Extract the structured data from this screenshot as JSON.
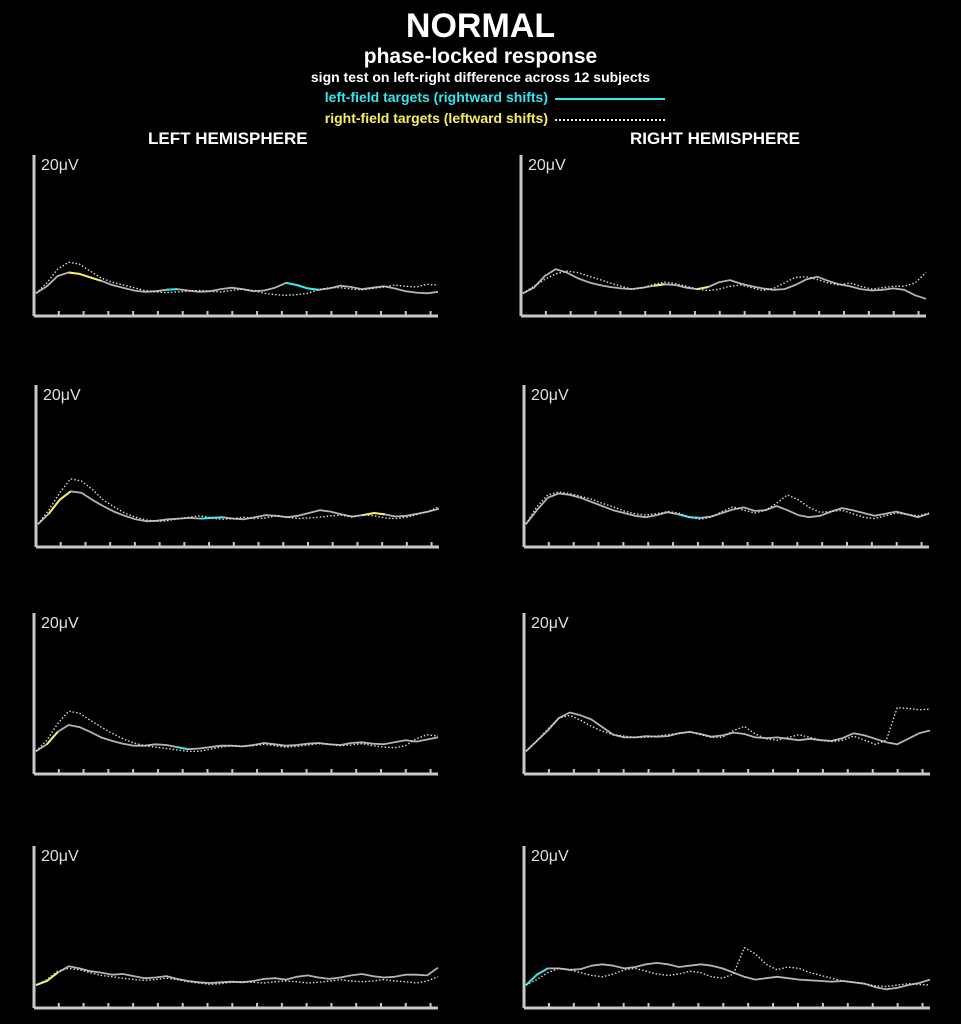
{
  "header": {
    "title": "NORMAL",
    "subtitle": "phase-locked response",
    "note": "sign test on left-right difference across 12 subjects"
  },
  "legend": {
    "left_field": "left-field targets (rightward shifts)",
    "right_field": "right-field targets (leftward shifts)"
  },
  "columns": {
    "left": "LEFT HEMISPHERE",
    "right": "RIGHT HEMISPHERE"
  },
  "colors": {
    "background": "#000000",
    "solid_trace": "#b4b4b4",
    "dotted_trace": "#d8d8d8",
    "cyan_highlight": "#33e6f0",
    "yellow_highlight": "#f5f060",
    "axis": "#c8c8c8"
  },
  "chart_data": [
    {
      "type": "line",
      "panel": "left-1",
      "scale_label": "20μV",
      "ylim": [
        -3,
        20
      ],
      "x_ticks": 16,
      "series": [
        {
          "style": "solid",
          "values": [
            0,
            1,
            2.5,
            3,
            2.8,
            2.3,
            1.8,
            1.2,
            0.8,
            0.4,
            0.2,
            0.3,
            0.5,
            0.6,
            0.4,
            0.2,
            0.3,
            0.6,
            0.8,
            0.6,
            0.3,
            0.4,
            0.8,
            1.5,
            1.2,
            0.7,
            0.5,
            0.7,
            1.1,
            0.9,
            0.6,
            0.8,
            1.0,
            0.7,
            0.3,
            0.1,
            0.0,
            0.2
          ],
          "highlight": [
            {
              "from": 3,
              "to": 6,
              "color": "yellow"
            },
            {
              "from": 12,
              "to": 13,
              "color": "cyan"
            },
            {
              "from": 23,
              "to": 26,
              "color": "cyan"
            }
          ]
        },
        {
          "style": "dotted",
          "values": [
            0,
            1.5,
            3.5,
            4.5,
            4.2,
            3.2,
            2.2,
            1.6,
            1.2,
            0.8,
            0.4,
            0.2,
            0.1,
            0.2,
            0.3,
            0.4,
            0.3,
            0.2,
            0.4,
            0.6,
            0.4,
            0.0,
            -0.2,
            -0.3,
            -0.2,
            0.0,
            0.5,
            0.8,
            0.8,
            0.6,
            0.5,
            0.7,
            0.9,
            1.2,
            1.0,
            0.9,
            1.3,
            1.2
          ]
        }
      ]
    },
    {
      "type": "line",
      "panel": "right-1",
      "scale_label": "20μV",
      "ylim": [
        -3,
        20
      ],
      "x_ticks": 16,
      "series": [
        {
          "style": "solid",
          "values": [
            0,
            0.8,
            2.5,
            3.5,
            3.0,
            2.2,
            1.6,
            1.2,
            0.9,
            0.7,
            0.6,
            0.8,
            1.1,
            1.3,
            1.2,
            0.8,
            0.6,
            0.9,
            1.6,
            1.9,
            1.4,
            1.0,
            0.7,
            0.5,
            0.6,
            1.2,
            2.0,
            2.4,
            1.8,
            1.3,
            1.0,
            0.6,
            0.4,
            0.5,
            0.7,
            0.5,
            -0.3,
            -0.8
          ],
          "highlight": [
            {
              "from": 12,
              "to": 13,
              "color": "yellow"
            },
            {
              "from": 16,
              "to": 17,
              "color": "yellow"
            }
          ]
        },
        {
          "style": "dotted",
          "values": [
            0,
            1.0,
            2.0,
            2.8,
            3.2,
            3.0,
            2.5,
            2.0,
            1.5,
            1.0,
            0.6,
            0.8,
            1.3,
            1.6,
            1.4,
            1.0,
            0.6,
            0.4,
            0.6,
            1.0,
            1.2,
            0.8,
            0.4,
            0.7,
            1.5,
            2.3,
            2.4,
            2.0,
            1.5,
            1.2,
            1.5,
            1.0,
            0.6,
            0.8,
            1.0,
            1.0,
            1.5,
            3.0
          ]
        }
      ]
    },
    {
      "type": "line",
      "panel": "left-2",
      "scale_label": "20μV",
      "ylim": [
        -3,
        20
      ],
      "x_ticks": 16,
      "series": [
        {
          "style": "solid",
          "values": [
            0,
            1.5,
            3.5,
            4.7,
            4.5,
            3.5,
            2.6,
            1.8,
            1.2,
            0.7,
            0.4,
            0.5,
            0.7,
            0.8,
            0.9,
            0.8,
            0.9,
            1.0,
            0.8,
            0.7,
            1.0,
            1.3,
            1.2,
            1.0,
            1.2,
            1.6,
            2.0,
            1.8,
            1.4,
            1.1,
            1.3,
            1.6,
            1.4,
            1.1,
            1.2,
            1.5,
            1.8,
            2.2
          ],
          "highlight": [
            {
              "from": 1,
              "to": 3,
              "color": "yellow"
            },
            {
              "from": 15,
              "to": 17,
              "color": "cyan"
            },
            {
              "from": 30,
              "to": 32,
              "color": "yellow"
            }
          ]
        },
        {
          "style": "dotted",
          "values": [
            0,
            2.0,
            4.5,
            6.5,
            6.2,
            5.0,
            3.5,
            2.5,
            1.6,
            1.0,
            0.6,
            0.4,
            0.5,
            0.8,
            1.0,
            1.2,
            0.9,
            0.7,
            0.8,
            1.0,
            0.8,
            0.9,
            1.2,
            1.0,
            0.8,
            0.9,
            1.0,
            1.2,
            1.3,
            1.0,
            1.4,
            1.2,
            0.9,
            0.8,
            1.0,
            1.4,
            1.8,
            2.5
          ]
        }
      ]
    },
    {
      "type": "line",
      "panel": "right-2",
      "scale_label": "20μV",
      "ylim": [
        -3,
        20
      ],
      "x_ticks": 16,
      "series": [
        {
          "style": "solid",
          "values": [
            0,
            2.0,
            3.8,
            4.4,
            4.2,
            3.8,
            3.2,
            2.6,
            2.0,
            1.6,
            1.2,
            1.0,
            1.3,
            1.7,
            1.4,
            1.0,
            0.9,
            1.1,
            1.6,
            2.1,
            2.4,
            1.9,
            2.0,
            2.6,
            2.0,
            1.3,
            1.0,
            1.2,
            1.8,
            2.3,
            2.0,
            1.6,
            1.2,
            1.5,
            1.8,
            1.4,
            1.0,
            1.5
          ],
          "highlight": [
            {
              "from": 14,
              "to": 16,
              "color": "cyan"
            }
          ]
        },
        {
          "style": "dotted",
          "values": [
            0,
            2.5,
            4.2,
            4.6,
            4.4,
            4.0,
            3.6,
            3.0,
            2.5,
            1.9,
            1.5,
            1.3,
            1.5,
            1.8,
            1.6,
            1.0,
            0.7,
            1.0,
            1.8,
            2.5,
            2.0,
            1.6,
            2.0,
            3.0,
            4.2,
            3.5,
            2.4,
            1.7,
            1.8,
            2.0,
            1.5,
            1.0,
            0.8,
            1.2,
            1.6,
            1.4,
            1.2,
            1.6
          ]
        }
      ]
    },
    {
      "type": "line",
      "panel": "left-3",
      "scale_label": "20μV",
      "ylim": [
        -3,
        20
      ],
      "x_ticks": 16,
      "series": [
        {
          "style": "solid",
          "values": [
            0,
            1.0,
            2.8,
            3.8,
            3.5,
            2.8,
            2.0,
            1.5,
            1.1,
            0.8,
            0.8,
            1.0,
            0.9,
            0.6,
            0.3,
            0.4,
            0.6,
            0.8,
            0.8,
            0.7,
            0.9,
            1.2,
            1.0,
            0.8,
            0.9,
            1.1,
            1.2,
            1.0,
            0.9,
            1.2,
            1.3,
            1.1,
            1.0,
            1.3,
            1.6,
            1.4,
            1.7,
            2.0
          ],
          "highlight": [
            {
              "from": 1,
              "to": 2,
              "color": "yellow"
            },
            {
              "from": 13,
              "to": 14,
              "color": "cyan"
            }
          ]
        },
        {
          "style": "dotted",
          "values": [
            0,
            1.6,
            4.0,
            5.8,
            5.5,
            4.5,
            3.5,
            2.6,
            1.8,
            1.2,
            0.8,
            0.6,
            0.4,
            0.2,
            0.0,
            0.0,
            0.3,
            0.6,
            0.8,
            0.7,
            0.8,
            1.0,
            0.8,
            0.6,
            0.7,
            0.9,
            1.1,
            1.0,
            0.8,
            0.9,
            1.1,
            0.8,
            0.6,
            0.5,
            0.8,
            1.8,
            2.4,
            2.2
          ]
        }
      ]
    },
    {
      "type": "line",
      "panel": "right-3",
      "scale_label": "20μV",
      "ylim": [
        -3,
        20
      ],
      "x_ticks": 16,
      "series": [
        {
          "style": "solid",
          "values": [
            0,
            1.5,
            3.0,
            4.8,
            5.6,
            5.2,
            4.6,
            3.5,
            2.4,
            2.0,
            2.0,
            2.2,
            2.1,
            2.2,
            2.6,
            2.8,
            2.5,
            2.1,
            2.3,
            2.7,
            2.5,
            2.0,
            1.9,
            2.0,
            1.8,
            1.6,
            1.8,
            1.6,
            1.5,
            1.9,
            2.6,
            2.3,
            1.8,
            1.3,
            1.0,
            1.8,
            2.6,
            3.0
          ],
          "highlight": []
        },
        {
          "style": "dotted",
          "values": [
            0,
            1.5,
            3.2,
            4.8,
            5.2,
            4.5,
            3.6,
            2.9,
            2.4,
            2.2,
            2.0,
            2.0,
            2.2,
            2.4,
            2.6,
            2.8,
            2.4,
            2.0,
            2.0,
            3.0,
            3.6,
            2.5,
            1.8,
            1.6,
            2.0,
            2.4,
            2.0,
            1.6,
            1.4,
            1.6,
            2.2,
            1.6,
            1.0,
            1.6,
            6.3,
            6.2,
            6.0,
            6.1
          ]
        }
      ]
    },
    {
      "type": "line",
      "panel": "left-4",
      "scale_label": "20μV",
      "ylim": [
        -3,
        20
      ],
      "x_ticks": 16,
      "series": [
        {
          "style": "solid",
          "values": [
            0,
            0.6,
            1.8,
            2.7,
            2.4,
            2.0,
            1.8,
            1.5,
            1.6,
            1.3,
            1.0,
            1.1,
            1.3,
            0.9,
            0.6,
            0.4,
            0.3,
            0.4,
            0.5,
            0.4,
            0.6,
            0.9,
            1.0,
            0.8,
            1.2,
            1.4,
            1.1,
            0.9,
            1.1,
            1.4,
            1.6,
            1.3,
            1.1,
            1.2,
            1.5,
            1.5,
            1.4,
            2.5
          ],
          "highlight": [
            {
              "from": 0,
              "to": 2,
              "color": "yellow"
            }
          ]
        },
        {
          "style": "dotted",
          "values": [
            0,
            0.8,
            2.0,
            2.4,
            2.2,
            1.8,
            1.4,
            1.2,
            1.0,
            0.8,
            0.7,
            0.8,
            1.0,
            0.8,
            0.5,
            0.3,
            0.1,
            0.2,
            0.4,
            0.5,
            0.4,
            0.3,
            0.5,
            0.6,
            0.5,
            0.3,
            0.4,
            0.6,
            0.8,
            0.6,
            0.5,
            0.6,
            0.8,
            0.6,
            0.5,
            0.3,
            0.6,
            1.2
          ]
        }
      ]
    },
    {
      "type": "line",
      "panel": "right-4",
      "scale_label": "20μV",
      "ylim": [
        -3,
        20
      ],
      "x_ticks": 16,
      "series": [
        {
          "style": "solid",
          "values": [
            0,
            1.5,
            2.4,
            2.4,
            2.2,
            2.3,
            2.8,
            3.0,
            2.8,
            2.4,
            2.6,
            3.0,
            3.2,
            3.0,
            2.6,
            2.8,
            3.0,
            2.8,
            2.4,
            1.8,
            1.2,
            0.8,
            1.0,
            1.2,
            1.0,
            0.8,
            0.7,
            0.6,
            0.5,
            0.6,
            0.4,
            0.2,
            -0.3,
            -0.6,
            -0.4,
            0.0,
            0.3,
            0.8
          ],
          "highlight": [
            {
              "from": 0,
              "to": 2,
              "color": "cyan"
            }
          ]
        },
        {
          "style": "dotted",
          "values": [
            0,
            0.8,
            1.8,
            2.4,
            2.2,
            1.8,
            1.4,
            1.2,
            1.6,
            2.2,
            2.4,
            2.0,
            1.6,
            1.4,
            1.6,
            2.0,
            1.8,
            1.2,
            1.0,
            1.6,
            5.4,
            4.5,
            3.0,
            2.2,
            2.6,
            2.4,
            1.8,
            1.4,
            1.0,
            0.6,
            0.4,
            0.2,
            -0.1,
            -0.2,
            0.0,
            0.2,
            0.1,
            0.0
          ]
        }
      ]
    }
  ]
}
